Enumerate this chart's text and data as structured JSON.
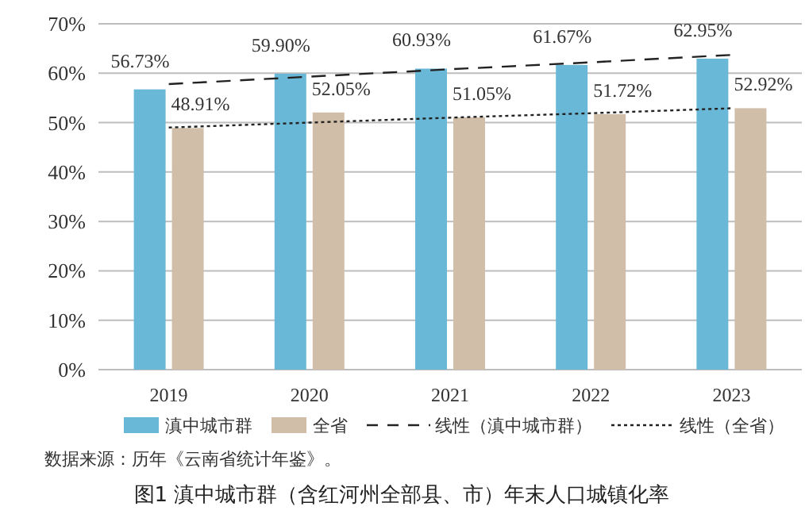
{
  "chart_data": {
    "type": "bar",
    "title": "图1 滇中城市群（含红河州全部县、市）年末人口城镇化率",
    "categories": [
      "2019",
      "2020",
      "2021",
      "2022",
      "2023"
    ],
    "series": [
      {
        "name": "滇中城市群",
        "color": "#6ab8d7",
        "values": [
          56.73,
          59.9,
          60.93,
          61.67,
          62.95
        ],
        "value_labels": [
          "56.73%",
          "59.90%",
          "60.93%",
          "61.67%",
          "62.95%"
        ]
      },
      {
        "name": "全省",
        "color": "#d0bea9",
        "values": [
          48.91,
          52.05,
          51.05,
          51.72,
          52.92
        ],
        "value_labels": [
          "48.91%",
          "52.05%",
          "51.05%",
          "51.72%",
          "52.92%"
        ]
      },
      {
        "name": "线性（滇中城市群）",
        "type": "line",
        "line_style": "dashed",
        "color": "#222222",
        "values": [
          57.8,
          59.3,
          60.8,
          62.2,
          63.7
        ]
      },
      {
        "name": "线性（全省）",
        "type": "line",
        "line_style": "dotted",
        "color": "#222222",
        "values": [
          49.0,
          50.0,
          51.0,
          51.9,
          52.9
        ]
      }
    ],
    "ylim": [
      0,
      70
    ],
    "yticks": [
      {
        "value": 0,
        "label": "0%"
      },
      {
        "value": 10,
        "label": "10%"
      },
      {
        "value": 20,
        "label": "20%"
      },
      {
        "value": 30,
        "label": "30%"
      },
      {
        "value": 40,
        "label": "40%"
      },
      {
        "value": 50,
        "label": "50%"
      },
      {
        "value": 60,
        "label": "60%"
      },
      {
        "value": 70,
        "label": "70%"
      }
    ],
    "grid": "y",
    "legend": "bottom",
    "annotations": [
      "数据来源：历年《云南省统计年鉴》。"
    ]
  }
}
